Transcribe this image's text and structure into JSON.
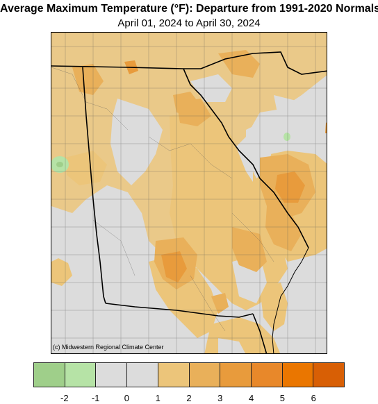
{
  "title": "Average Maximum Temperature (°F): Departure from 1991-2020 Normals",
  "subtitle": "April 01, 2024 to April 30, 2024",
  "credit": "(c) Midwestern Regional Climate Center",
  "legend": {
    "colors": [
      "#9fcf8a",
      "#b6e3a6",
      "#dcdcdc",
      "#dcdcdc",
      "#ecc57a",
      "#e9b05a",
      "#e89b3c",
      "#e8882a",
      "#ea7600",
      "#d85f05"
    ],
    "tick_labels": [
      "-2",
      "-1",
      "0",
      "1",
      "2",
      "3",
      "4",
      "5",
      "6"
    ],
    "tick_positions": [
      1,
      2,
      3,
      4,
      5,
      6,
      7,
      8,
      9
    ]
  },
  "map": {
    "states": [
      "Georgia",
      "South Carolina",
      "Alabama",
      "Tennessee",
      "North Carolina",
      "Florida"
    ],
    "colors": {
      "background": "#dcdcdc",
      "warm_light": "#ecc57a",
      "warm_mid": "#e9b05a",
      "warm_strong": "#e89b3c",
      "cool": "#b6e3a6",
      "cool_strong": "#9fcf8a"
    }
  }
}
